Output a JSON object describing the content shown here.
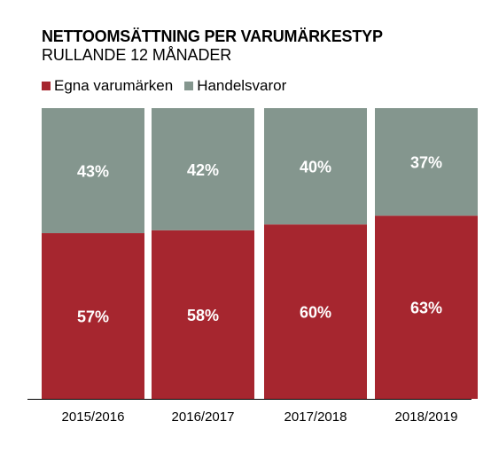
{
  "chart_data": {
    "type": "bar",
    "stacked": true,
    "title": "NETTOOMSÄTTNING PER VARUMÄRKESTYP",
    "subtitle": "RULLANDE 12 MÅNADER",
    "categories": [
      "2015/2016",
      "2016/2017",
      "2017/2018",
      "2018/2019"
    ],
    "series": [
      {
        "name": "Egna varumärken",
        "color": "#A6262F",
        "values": [
          57,
          58,
          60,
          63
        ],
        "labels": [
          "57%",
          "58%",
          "60%",
          "63%"
        ]
      },
      {
        "name": "Handelsvaror",
        "color": "#84968E",
        "values": [
          43,
          42,
          40,
          37
        ],
        "labels": [
          "43%",
          "42%",
          "40%",
          "37%"
        ]
      }
    ],
    "ylim": [
      0,
      100
    ],
    "unit": "%",
    "grid": false,
    "legend_position": "top-left"
  }
}
